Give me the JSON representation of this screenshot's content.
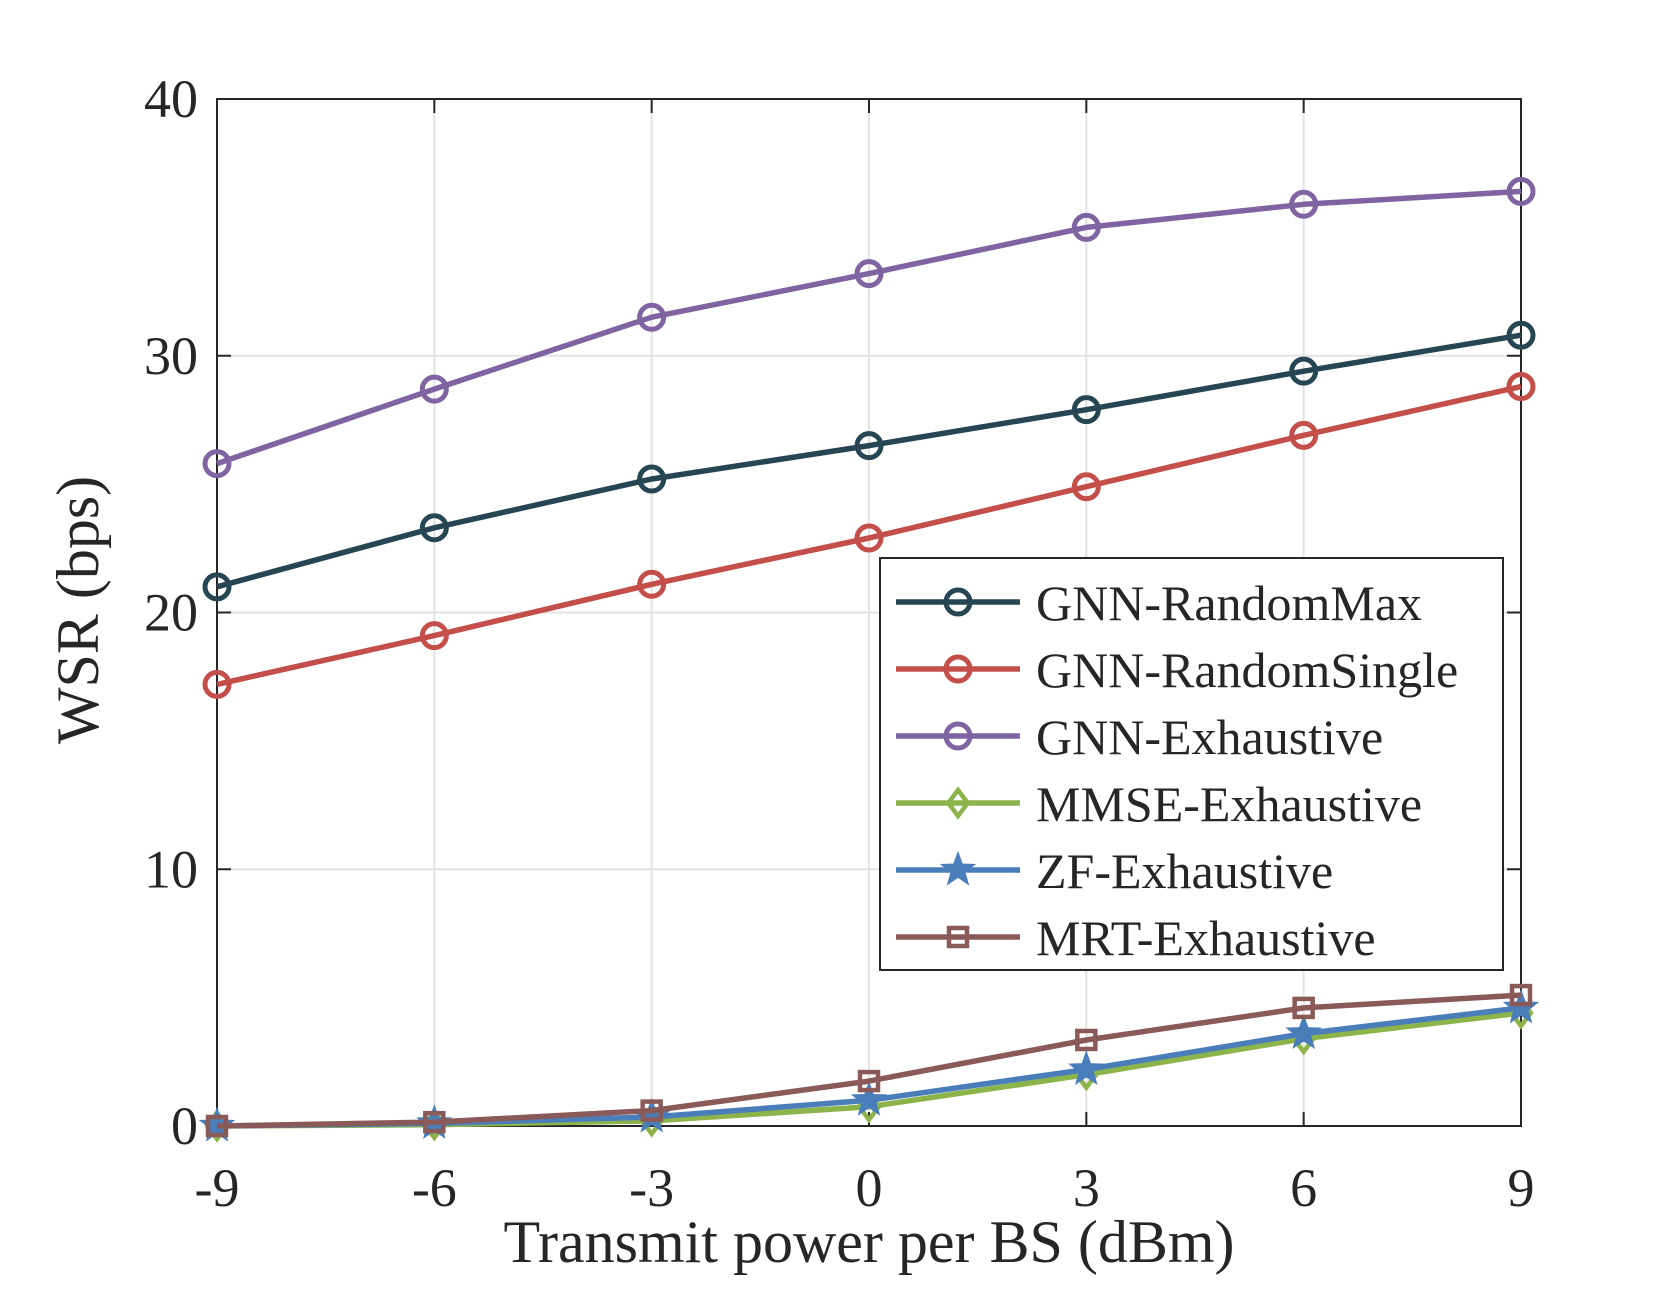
{
  "chart_data": {
    "type": "line",
    "title": "",
    "xlabel": "Transmit power per BS (dBm)",
    "ylabel": "WSR (bps)",
    "x": [
      -9,
      -6,
      -3,
      0,
      3,
      6,
      9
    ],
    "xticks": [
      "-9",
      "-6",
      "-3",
      "0",
      "3",
      "6",
      "9"
    ],
    "yticks": [
      "0",
      "10",
      "20",
      "30",
      "40"
    ],
    "xlim": [
      -9,
      9
    ],
    "ylim": [
      0,
      40
    ],
    "grid": true,
    "legend_position": "center-right",
    "series": [
      {
        "name": "GNN-RandomMax",
        "color": "#264653",
        "marker": "circle",
        "values": [
          21.0,
          23.3,
          25.2,
          26.5,
          27.9,
          29.4,
          30.8
        ]
      },
      {
        "name": "GNN-RandomSingle",
        "color": "#c44e4a",
        "marker": "circle",
        "values": [
          17.2,
          19.1,
          21.1,
          22.9,
          24.9,
          26.9,
          28.8
        ]
      },
      {
        "name": "GNN-Exhaustive",
        "color": "#8064a2",
        "marker": "circle",
        "values": [
          25.8,
          28.7,
          31.5,
          33.2,
          35.0,
          35.9,
          36.4
        ]
      },
      {
        "name": "MMSE-Exhaustive",
        "color": "#8db34b",
        "marker": "diamond",
        "values": [
          0.0,
          0.05,
          0.2,
          0.75,
          2.0,
          3.4,
          4.4
        ]
      },
      {
        "name": "ZF-Exhaustive",
        "color": "#4a7ebb",
        "marker": "star",
        "values": [
          0.0,
          0.1,
          0.35,
          1.0,
          2.2,
          3.6,
          4.6
        ]
      },
      {
        "name": "MRT-Exhaustive",
        "color": "#8a5a58",
        "marker": "square",
        "values": [
          0.0,
          0.15,
          0.6,
          1.75,
          3.35,
          4.6,
          5.1
        ]
      }
    ]
  }
}
